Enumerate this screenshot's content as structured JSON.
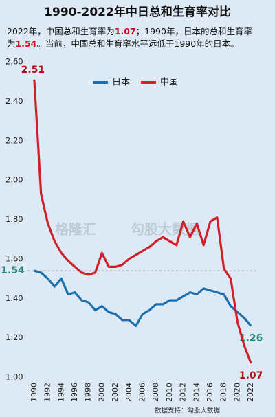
{
  "chart_data": {
    "type": "line",
    "title": "1990-2022年中日总和生育率对比",
    "subtitle_lines": [
      [
        {
          "text": "2022年，中国总和生育率为",
          "highlight": false
        },
        {
          "text": "1.07",
          "highlight": true
        },
        {
          "text": "；1990年，日本的总和生育率",
          "highlight": false
        }
      ],
      [
        {
          "text": "为",
          "highlight": false
        },
        {
          "text": "1.54",
          "highlight": true
        },
        {
          "text": "。当前，中国总和生育率水平远低于1990年的日本。",
          "highlight": false
        }
      ]
    ],
    "highlight_color": "#c8161d",
    "x": [
      1990,
      1991,
      1992,
      1993,
      1994,
      1995,
      1996,
      1997,
      1998,
      1999,
      2000,
      2001,
      2002,
      2003,
      2004,
      2005,
      2006,
      2007,
      2008,
      2009,
      2010,
      2011,
      2012,
      2013,
      2014,
      2015,
      2016,
      2017,
      2018,
      2019,
      2020,
      2021,
      2022
    ],
    "series": [
      {
        "name": "日本",
        "color": "#1a6fb0",
        "values": [
          1.54,
          1.53,
          1.5,
          1.46,
          1.5,
          1.42,
          1.43,
          1.39,
          1.38,
          1.34,
          1.36,
          1.33,
          1.32,
          1.29,
          1.29,
          1.26,
          1.32,
          1.34,
          1.37,
          1.37,
          1.39,
          1.39,
          1.41,
          1.43,
          1.42,
          1.45,
          1.44,
          1.43,
          1.42,
          1.36,
          1.33,
          1.3,
          1.26
        ],
        "value_labels": [
          "1.54",
          null,
          null,
          null,
          null,
          null,
          null,
          null,
          null,
          null,
          null,
          null,
          null,
          null,
          null,
          null,
          null,
          null,
          null,
          null,
          null,
          null,
          null,
          null,
          null,
          null,
          null,
          null,
          null,
          null,
          null,
          null,
          "1.26"
        ]
      },
      {
        "name": "中国",
        "color": "#d0202a",
        "values": [
          2.51,
          1.93,
          1.78,
          1.69,
          1.63,
          1.59,
          1.56,
          1.53,
          1.52,
          1.53,
          1.63,
          1.56,
          1.56,
          1.57,
          1.6,
          1.62,
          1.64,
          1.66,
          1.69,
          1.71,
          1.69,
          1.67,
          1.79,
          1.71,
          1.78,
          1.67,
          1.79,
          1.81,
          1.55,
          1.5,
          1.28,
          1.16,
          1.07
        ],
        "value_labels": [
          "2.51",
          null,
          null,
          null,
          null,
          null,
          null,
          null,
          null,
          null,
          null,
          null,
          null,
          null,
          null,
          null,
          null,
          null,
          null,
          null,
          null,
          null,
          null,
          null,
          null,
          null,
          null,
          null,
          null,
          null,
          null,
          null,
          "1.07"
        ]
      }
    ],
    "xlim": [
      1989,
      2023
    ],
    "xticks": [
      1990,
      1992,
      1994,
      1996,
      1998,
      2000,
      2002,
      2004,
      2006,
      2008,
      2010,
      2012,
      2014,
      2016,
      2018,
      2020,
      2022
    ],
    "ylim": [
      1.0,
      2.6
    ],
    "yticks": [
      {
        "value": 1.0,
        "label": "1.00"
      },
      {
        "value": 1.2,
        "label": "1.20"
      },
      {
        "value": 1.4,
        "label": "1.40"
      },
      {
        "value": 1.6,
        "label": "1.60"
      },
      {
        "value": 1.8,
        "label": "1.80"
      },
      {
        "value": 2.0,
        "label": "2.00"
      },
      {
        "value": 2.2,
        "label": "2.20"
      },
      {
        "value": 2.4,
        "label": "2.40"
      },
      {
        "value": 2.6,
        "label": "2.60"
      }
    ],
    "reference_line": 1.54,
    "watermarks": [
      "格隆汇",
      "勾股大数据"
    ],
    "source": "数据支持：勾股大数据"
  }
}
